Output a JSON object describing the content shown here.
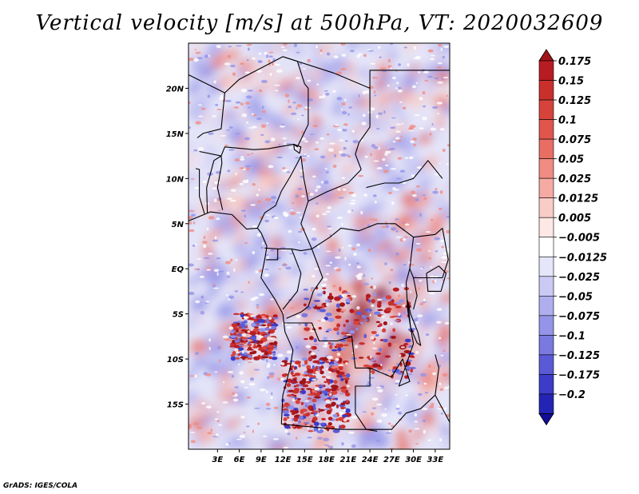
{
  "title": "Vertical velocity [m/s] at 500hPa, VT: 2020032609",
  "footer": "GrADS: IGES/COLA",
  "chart_data": {
    "type": "heatmap",
    "variable": "Vertical velocity",
    "units": "m/s",
    "level": "500hPa",
    "valid_time": "2020032609",
    "lon_range": [
      -1,
      35
    ],
    "lat_range": [
      -20,
      25
    ],
    "x_ticks": [
      {
        "lon": 3,
        "label": "3E"
      },
      {
        "lon": 6,
        "label": "6E"
      },
      {
        "lon": 9,
        "label": "9E"
      },
      {
        "lon": 12,
        "label": "12E"
      },
      {
        "lon": 15,
        "label": "15E"
      },
      {
        "lon": 18,
        "label": "18E"
      },
      {
        "lon": 21,
        "label": "21E"
      },
      {
        "lon": 24,
        "label": "24E"
      },
      {
        "lon": 27,
        "label": "27E"
      },
      {
        "lon": 30,
        "label": "30E"
      },
      {
        "lon": 33,
        "label": "33E"
      }
    ],
    "y_ticks": [
      {
        "lat": 20,
        "label": "20N"
      },
      {
        "lat": 15,
        "label": "15N"
      },
      {
        "lat": 10,
        "label": "10N"
      },
      {
        "lat": 5,
        "label": "5N"
      },
      {
        "lat": 0,
        "label": "EQ"
      },
      {
        "lat": -5,
        "label": "5S"
      },
      {
        "lat": -10,
        "label": "10S"
      },
      {
        "lat": -15,
        "label": "15S"
      }
    ],
    "colorbar": {
      "levels": [
        {
          "value": 0.175,
          "label": "0.175"
        },
        {
          "value": 0.15,
          "label": "0.15"
        },
        {
          "value": 0.125,
          "label": "0.125"
        },
        {
          "value": 0.1,
          "label": "0.1"
        },
        {
          "value": 0.075,
          "label": "0.075"
        },
        {
          "value": 0.05,
          "label": "0.05"
        },
        {
          "value": 0.025,
          "label": "0.025"
        },
        {
          "value": 0.0125,
          "label": "0.0125"
        },
        {
          "value": 0.005,
          "label": "0.005"
        },
        {
          "value": -0.005,
          "label": "−0.005"
        },
        {
          "value": -0.0125,
          "label": "−0.0125"
        },
        {
          "value": -0.025,
          "label": "−0.025"
        },
        {
          "value": -0.05,
          "label": "−0.05"
        },
        {
          "value": -0.075,
          "label": "−0.075"
        },
        {
          "value": -0.1,
          "label": "−0.1"
        },
        {
          "value": -0.125,
          "label": "−0.125"
        },
        {
          "value": -0.175,
          "label": "−0.175"
        },
        {
          "value": -0.2,
          "label": "−0.2"
        }
      ],
      "colors_top_to_bottom": [
        "#a01418",
        "#b71c22",
        "#c9302c",
        "#d6433b",
        "#e0564c",
        "#e86e63",
        "#f08c83",
        "#f5aaa3",
        "#f9ccc7",
        "#fde8e6",
        "#ffffff",
        "#e6e6fa",
        "#cacaf5",
        "#afafef",
        "#9494e8",
        "#7979e0",
        "#5a5ad6",
        "#3c3cc8",
        "#2424b4",
        "#120c96"
      ]
    },
    "features": [
      {
        "name": "strong ascent cluster",
        "lon": [
          15,
          30
        ],
        "lat": [
          -12,
          -2
        ],
        "sign": "positive"
      },
      {
        "name": "strong ascent cluster",
        "lon": [
          5,
          11
        ],
        "lat": [
          -10,
          -5
        ],
        "sign": "positive"
      },
      {
        "name": "strong ascent cluster",
        "lon": [
          12,
          21
        ],
        "lat": [
          -18,
          -10
        ],
        "sign": "positive"
      },
      {
        "name": "weak descent",
        "lon": [
          0,
          35
        ],
        "lat": [
          -20,
          25
        ],
        "sign": "negative"
      }
    ]
  }
}
